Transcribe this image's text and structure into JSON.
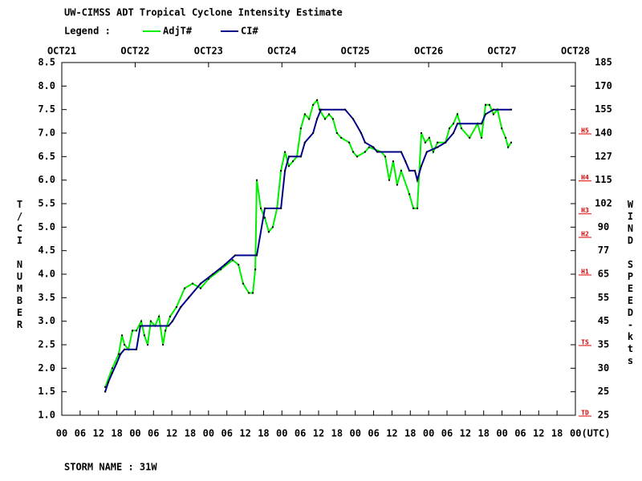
{
  "chart_data": {
    "type": "line",
    "title": "UW-CIMSS ADT Tropical Cyclone Intensity Estimate",
    "legend_label": "Legend :",
    "y_label": "T/CI NUMBER",
    "y2_label": "WIND SPEED-kts",
    "footer": "STORM NAME : 31W",
    "xlim": [
      0,
      168
    ],
    "xticks": [
      {
        "value": 0,
        "label": "00"
      },
      {
        "value": 6,
        "label": "06"
      },
      12,
      18,
      {
        "value": 24,
        "label": "00"
      },
      {
        "value": 30,
        "label": "06"
      },
      {
        "value": 36,
        "label": "12"
      },
      {
        "value": 42,
        "label": "18"
      },
      {
        "value": 48,
        "label": "00"
      },
      {
        "value": 54,
        "label": "06"
      },
      {
        "value": 60,
        "label": "12"
      },
      {
        "value": 66,
        "label": "18"
      },
      {
        "value": 72,
        "label": "00"
      },
      {
        "value": 78,
        "label": "06"
      },
      {
        "value": 84,
        "label": "12"
      },
      {
        "value": 90,
        "label": "18"
      },
      {
        "value": 96,
        "label": "00"
      },
      {
        "value": 102,
        "label": "06"
      },
      {
        "value": 108,
        "label": "12"
      },
      {
        "value": 114,
        "label": "18"
      },
      {
        "value": 120,
        "label": "00"
      },
      {
        "value": 126,
        "label": "06"
      },
      {
        "value": 132,
        "label": "12"
      },
      {
        "value": 138,
        "label": "18"
      },
      {
        "value": 144,
        "label": "00"
      },
      {
        "value": 150,
        "label": "06"
      },
      {
        "value": 156,
        "label": "12"
      },
      {
        "value": 162,
        "label": "18"
      },
      {
        "value": 168,
        "label": "00(UTC)"
      }
    ],
    "date_ticks": [
      {
        "value": 0,
        "label": "OCT21"
      },
      {
        "value": 24,
        "label": "OCT22"
      },
      {
        "value": 48,
        "label": "OCT23"
      },
      {
        "value": 72,
        "label": "OCT24"
      },
      {
        "value": 96,
        "label": "OCT25"
      },
      {
        "value": 120,
        "label": "OCT26"
      },
      {
        "value": 144,
        "label": "OCT27"
      },
      {
        "value": 168,
        "label": "OCT28"
      }
    ],
    "ylim": [
      1.0,
      8.5
    ],
    "yticks": [
      {
        "value": 1,
        "label": "1.0"
      },
      1.5,
      {
        "value": 2,
        "label": "2.0"
      },
      2.5,
      {
        "value": 3,
        "label": "3.0"
      },
      3.5,
      {
        "value": 4,
        "label": "4.0"
      },
      4.5,
      {
        "value": 5,
        "label": "5.0"
      },
      5.5,
      {
        "value": 6,
        "label": "6.0"
      },
      6.5,
      {
        "value": 7,
        "label": "7.0"
      },
      7.5,
      {
        "value": 8,
        "label": "8.0"
      },
      8.5
    ],
    "y2_tick_labels": [
      "25",
      "25",
      "30",
      "35",
      "45",
      "55",
      "65",
      "77",
      "90",
      "102",
      "115",
      "127",
      "140",
      "155",
      "170",
      "185"
    ],
    "category_markers": [
      {
        "label": "TD",
        "value": 1.0
      },
      {
        "label": "TS",
        "value": 2.5
      },
      {
        "label": "H1",
        "value": 4.0
      },
      {
        "label": "H2",
        "value": 4.8
      },
      {
        "label": "H3",
        "value": 5.3
      },
      {
        "label": "H4",
        "value": 6.0
      },
      {
        "label": "H5",
        "value": 7.0
      }
    ],
    "marker_color": "#dd0000",
    "series": [
      {
        "name": "AdjT#",
        "color": "#00ee00",
        "x": [
          14.2,
          16.5,
          18.6,
          19.7,
          20.5,
          21.8,
          23.1,
          24.4,
          26.0,
          27.0,
          28.1,
          29.1,
          30.5,
          31.8,
          33.1,
          33.9,
          35.4,
          37.5,
          40.2,
          42.8,
          45.4,
          48.0,
          52.0,
          55.9,
          57.8,
          59.3,
          61.2,
          62.5,
          63.3,
          63.8,
          65.1,
          66.4,
          67.7,
          69.0,
          70.4,
          71.7,
          73.0,
          74.3,
          75.6,
          76.9,
          78.2,
          79.5,
          80.9,
          82.2,
          83.5,
          84.3,
          86.1,
          87.4,
          88.7,
          90.0,
          91.4,
          94.0,
          95.3,
          96.6,
          99.2,
          100.5,
          104.5,
          105.8,
          107.1,
          108.4,
          109.7,
          111.0,
          113.7,
          115.0,
          116.3,
          117.6,
          118.9,
          120.2,
          121.5,
          122.9,
          125.5,
          126.8,
          128.1,
          129.4,
          130.7,
          133.4,
          136.0,
          137.3,
          138.6,
          139.9,
          141.2,
          142.5,
          143.9,
          145.2,
          146.0,
          147.0
        ],
        "values": [
          1.6,
          2.0,
          2.3,
          2.7,
          2.5,
          2.4,
          2.8,
          2.8,
          3.0,
          2.7,
          2.5,
          3.0,
          2.9,
          3.1,
          2.5,
          2.8,
          3.1,
          3.3,
          3.7,
          3.8,
          3.7,
          3.9,
          4.1,
          4.3,
          4.2,
          3.8,
          3.6,
          3.6,
          4.1,
          6.0,
          5.4,
          5.2,
          4.9,
          5.0,
          5.4,
          6.2,
          6.6,
          6.3,
          6.4,
          6.5,
          7.1,
          7.4,
          7.3,
          7.6,
          7.7,
          7.5,
          7.3,
          7.4,
          7.3,
          7.0,
          6.9,
          6.8,
          6.6,
          6.5,
          6.6,
          6.7,
          6.6,
          6.5,
          6.0,
          6.4,
          5.9,
          6.2,
          5.7,
          5.4,
          5.4,
          7.0,
          6.8,
          6.9,
          6.6,
          6.8,
          6.8,
          7.1,
          7.2,
          7.4,
          7.1,
          6.9,
          7.2,
          6.9,
          7.6,
          7.6,
          7.4,
          7.5,
          7.1,
          6.9,
          6.7,
          6.8
        ]
      },
      {
        "name": "CI#",
        "color": "#00008b",
        "x": [
          14.2,
          15.2,
          16.5,
          17.9,
          19.2,
          20.5,
          24.4,
          25.7,
          34.9,
          36.2,
          38.9,
          41.5,
          45.4,
          49.4,
          53.3,
          56.7,
          63.8,
          66.4,
          71.7,
          73.0,
          74.3,
          78.2,
          79.5,
          82.2,
          83.5,
          84.8,
          92.7,
          95.3,
          97.9,
          99.2,
          101.9,
          103.2,
          111.0,
          112.4,
          113.7,
          115.5,
          116.3,
          117.6,
          119.4,
          122.9,
          125.5,
          128.1,
          129.4,
          137.3,
          138.6,
          141.2,
          147.0
        ],
        "values": [
          1.5,
          1.7,
          1.9,
          2.1,
          2.3,
          2.4,
          2.4,
          2.9,
          2.9,
          3.0,
          3.3,
          3.5,
          3.8,
          4.0,
          4.2,
          4.4,
          4.4,
          5.4,
          5.4,
          6.2,
          6.5,
          6.5,
          6.8,
          7.0,
          7.3,
          7.5,
          7.5,
          7.3,
          7.0,
          6.8,
          6.7,
          6.6,
          6.6,
          6.4,
          6.2,
          6.2,
          6.0,
          6.3,
          6.6,
          6.7,
          6.8,
          7.0,
          7.2,
          7.2,
          7.4,
          7.5,
          7.5
        ]
      }
    ]
  }
}
